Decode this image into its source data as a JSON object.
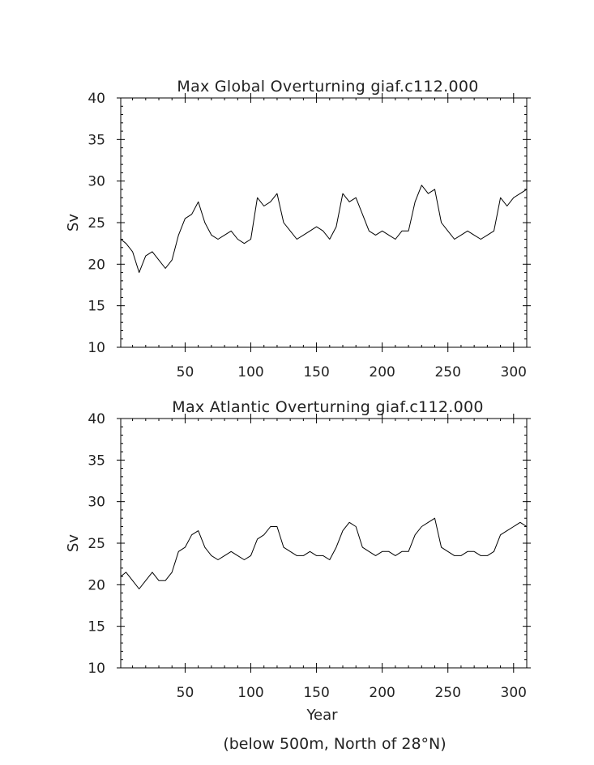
{
  "chart_data": [
    {
      "type": "line",
      "title": "Max Global Overturning giaf.c112.000",
      "xlabel": "",
      "ylabel": "Sv",
      "xlim": [
        1,
        310
      ],
      "ylim": [
        10,
        40
      ],
      "x_ticks": [
        50,
        100,
        150,
        200,
        250,
        300
      ],
      "y_ticks": [
        10,
        15,
        20,
        25,
        30,
        35,
        40
      ],
      "grid": false,
      "series": [
        {
          "x": [
            1,
            5,
            10,
            15,
            20,
            25,
            30,
            35,
            40,
            45,
            50,
            55,
            60,
            65,
            70,
            75,
            80,
            85,
            90,
            95,
            100,
            105,
            110,
            115,
            120,
            125,
            130,
            135,
            140,
            145,
            150,
            155,
            160,
            165,
            170,
            175,
            180,
            185,
            190,
            195,
            200,
            205,
            210,
            215,
            220,
            225,
            230,
            235,
            240,
            245,
            250,
            255,
            260,
            265,
            270,
            275,
            280,
            285,
            290,
            295,
            300,
            305,
            310
          ],
          "y": [
            23,
            22.5,
            21.5,
            19,
            21,
            21.5,
            20.5,
            19.5,
            20.5,
            23.5,
            25.5,
            26,
            27.5,
            25,
            23.5,
            23,
            23.5,
            24,
            23,
            22.5,
            23,
            28,
            27,
            27.5,
            28.5,
            25,
            24,
            23,
            23.5,
            24,
            24.5,
            24,
            23,
            24.5,
            28.5,
            27.5,
            28,
            26,
            24,
            23.5,
            24,
            23.5,
            23,
            24,
            24,
            27.5,
            29.5,
            28.5,
            29,
            25,
            24,
            23,
            23.5,
            24,
            23.5,
            23,
            23.5,
            24,
            28,
            27,
            28,
            28.5,
            29
          ]
        }
      ]
    },
    {
      "type": "line",
      "title": "Max Atlantic Overturning giaf.c112.000",
      "xlabel": "Year",
      "ylabel": "Sv",
      "xlim": [
        1,
        310
      ],
      "ylim": [
        10,
        40
      ],
      "x_ticks": [
        50,
        100,
        150,
        200,
        250,
        300
      ],
      "y_ticks": [
        10,
        15,
        20,
        25,
        30,
        35,
        40
      ],
      "grid": false,
      "series": [
        {
          "x": [
            1,
            5,
            10,
            15,
            20,
            25,
            30,
            35,
            40,
            45,
            50,
            55,
            60,
            65,
            70,
            75,
            80,
            85,
            90,
            95,
            100,
            105,
            110,
            115,
            120,
            125,
            130,
            135,
            140,
            145,
            150,
            155,
            160,
            165,
            170,
            175,
            180,
            185,
            190,
            195,
            200,
            205,
            210,
            215,
            220,
            225,
            230,
            235,
            240,
            245,
            250,
            255,
            260,
            265,
            270,
            275,
            280,
            285,
            290,
            295,
            300,
            305,
            310
          ],
          "y": [
            21,
            21.5,
            20.5,
            19.5,
            20.5,
            21.5,
            20.5,
            20.5,
            21.5,
            24,
            24.5,
            26,
            26.5,
            24.5,
            23.5,
            23,
            23.5,
            24,
            23.5,
            23,
            23.5,
            25.5,
            26,
            27,
            27,
            24.5,
            24,
            23.5,
            23.5,
            24,
            23.5,
            23.5,
            23,
            24.5,
            26.5,
            27.5,
            27,
            24.5,
            24,
            23.5,
            24,
            24,
            23.5,
            24,
            24,
            26,
            27,
            27.5,
            28,
            24.5,
            24,
            23.5,
            23.5,
            24,
            24,
            23.5,
            23.5,
            24,
            26,
            26.5,
            27,
            27.5,
            27
          ]
        }
      ]
    }
  ],
  "footnote": "(below 500m, North of 28°N)"
}
